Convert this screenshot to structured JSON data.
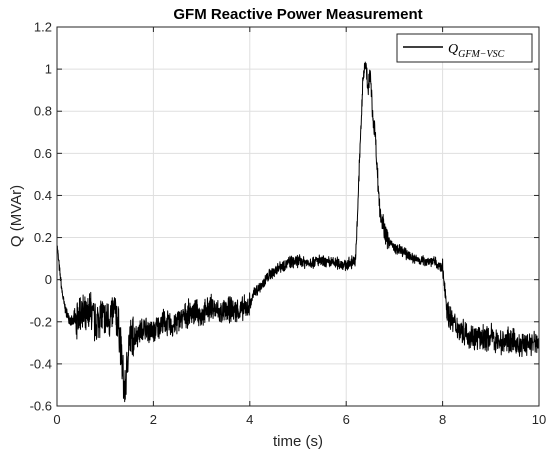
{
  "colors": {
    "line": "#000000",
    "grid": "#dfdfdf",
    "axes": "#262626",
    "background": "#ffffff"
  },
  "chart_data": {
    "type": "line",
    "title": "GFM Reactive Power Measurement",
    "xlabel": "time (s)",
    "ylabel": "Q (MVAr)",
    "xlim": [
      0,
      10
    ],
    "ylim": [
      -0.6,
      1.2
    ],
    "xticks": [
      "0",
      "2",
      "4",
      "6",
      "8",
      "10"
    ],
    "yticks": [
      "-0.6",
      "-0.4",
      "-0.2",
      "0",
      "0.2",
      "0.4",
      "0.6",
      "0.8",
      "1",
      "1.2"
    ],
    "grid": true,
    "legend": {
      "position": "top-right",
      "entries": [
        {
          "symbol": "Q",
          "subscript": "GFM−VSC"
        }
      ]
    },
    "series": [
      {
        "x": [
          0,
          0.05,
          0.1,
          0.15,
          0.2,
          0.25,
          0.3,
          0.4,
          0.5,
          0.6,
          0.7,
          0.8,
          0.9,
          1.0,
          1.1,
          1.2,
          1.3,
          1.35,
          1.4,
          1.45,
          1.5,
          1.6,
          1.7,
          1.8,
          2.0,
          2.2,
          2.4,
          2.6,
          2.8,
          3.0,
          3.2,
          3.4,
          3.6,
          3.8,
          4.0,
          4.1,
          4.2,
          4.4,
          4.6,
          4.8,
          5.0,
          5.2,
          5.4,
          5.6,
          5.8,
          6.0,
          6.1,
          6.2,
          6.25,
          6.3,
          6.35,
          6.4,
          6.45,
          6.5,
          6.55,
          6.6,
          6.65,
          6.7,
          6.75,
          6.8,
          6.9,
          7.0,
          7.2,
          7.4,
          7.6,
          7.8,
          8.0,
          8.05,
          8.1,
          8.2,
          8.4,
          8.6,
          8.8,
          9.0,
          9.2,
          9.4,
          9.6,
          9.8,
          10.0
        ],
        "y": [
          0.17,
          0.05,
          -0.05,
          -0.12,
          -0.16,
          -0.18,
          -0.2,
          -0.2,
          -0.15,
          -0.2,
          -0.14,
          -0.22,
          -0.16,
          -0.2,
          -0.18,
          -0.15,
          -0.25,
          -0.4,
          -0.55,
          -0.42,
          -0.28,
          -0.27,
          -0.25,
          -0.23,
          -0.25,
          -0.2,
          -0.22,
          -0.18,
          -0.15,
          -0.17,
          -0.13,
          -0.16,
          -0.14,
          -0.15,
          -0.12,
          -0.06,
          -0.04,
          0.02,
          0.06,
          0.08,
          0.09,
          0.08,
          0.09,
          0.08,
          0.08,
          0.07,
          0.08,
          0.1,
          0.4,
          0.7,
          0.95,
          1.05,
          0.9,
          0.98,
          0.78,
          0.7,
          0.5,
          0.32,
          0.28,
          0.22,
          0.18,
          0.15,
          0.13,
          0.1,
          0.09,
          0.09,
          0.05,
          -0.05,
          -0.15,
          -0.2,
          -0.24,
          -0.27,
          -0.28,
          -0.27,
          -0.3,
          -0.28,
          -0.32,
          -0.3,
          -0.3
        ]
      }
    ]
  }
}
